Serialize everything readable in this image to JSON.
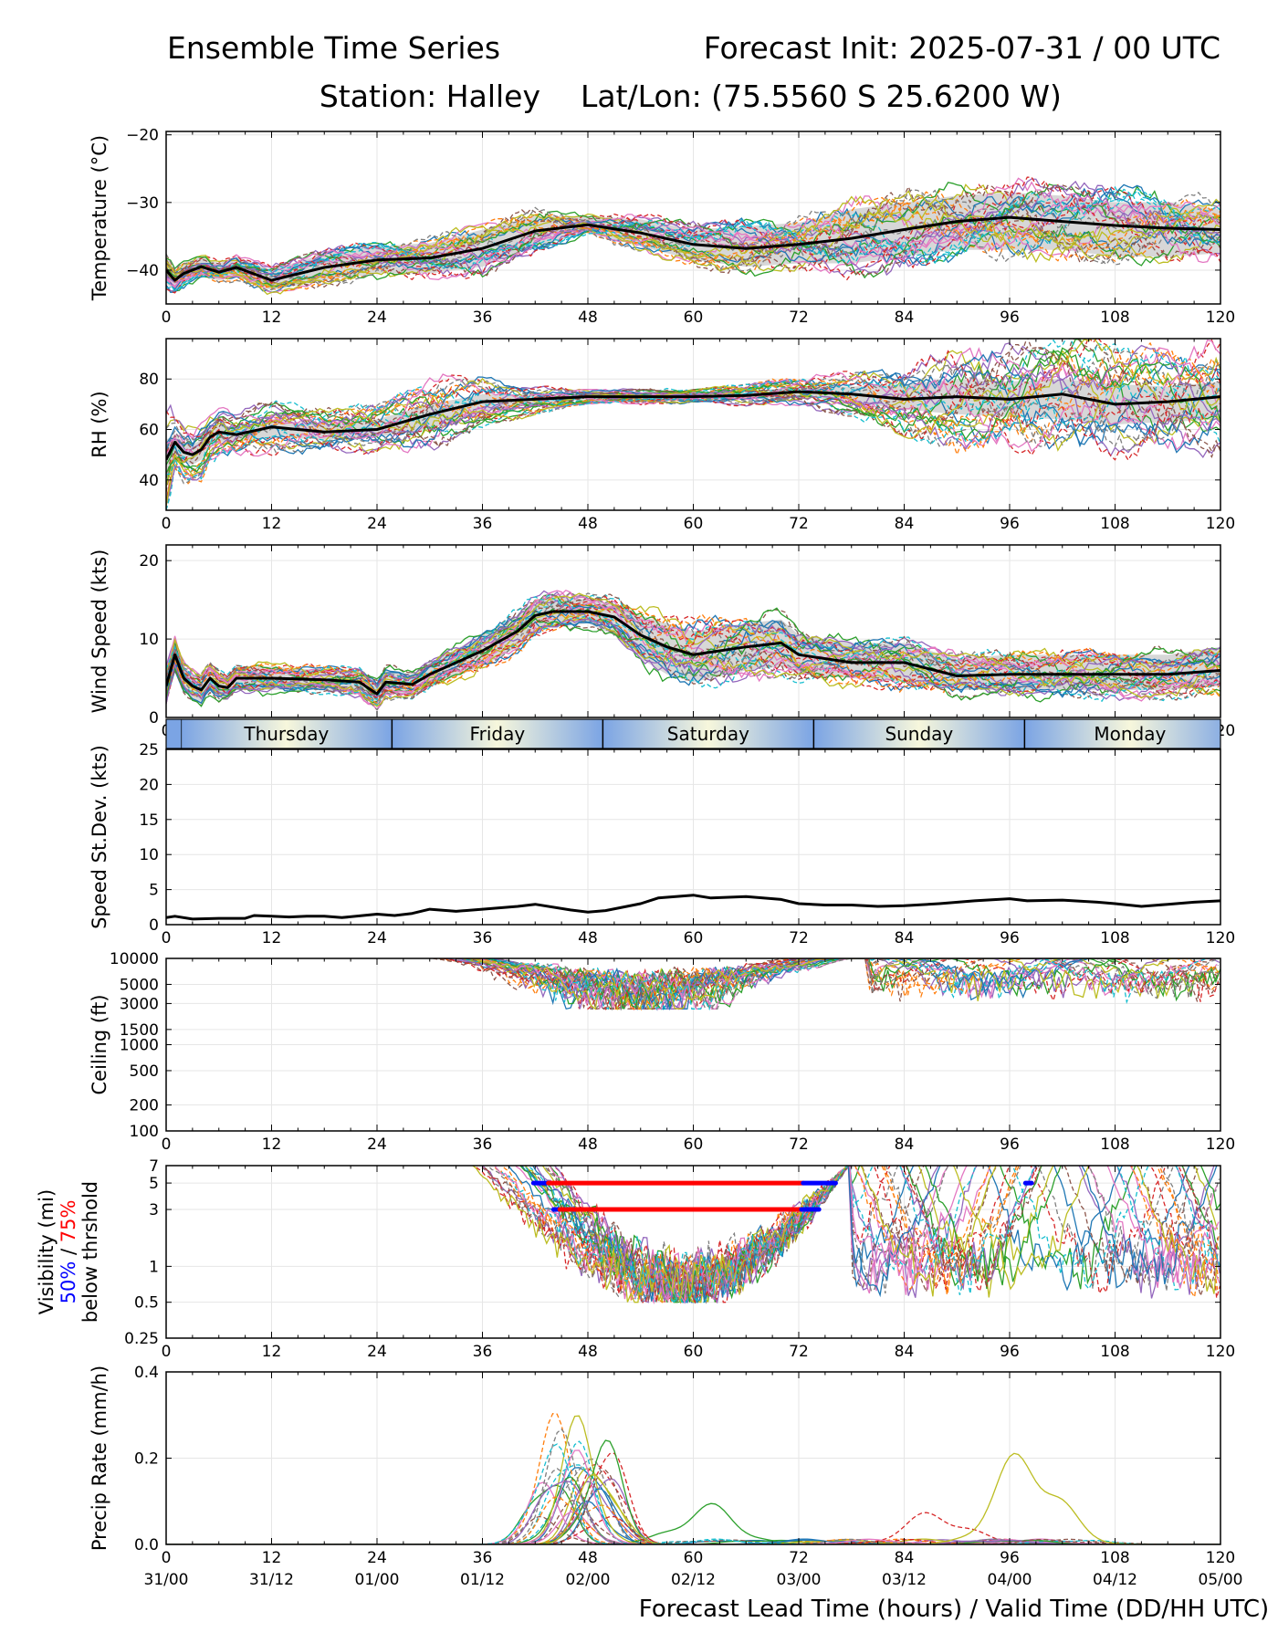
{
  "header": {
    "title": "Ensemble Time Series",
    "init": "Forecast Init: 2025-07-31 / 00 UTC",
    "station": "Station: Halley",
    "latlon": "Lat/Lon: (75.5560 S 25.6200 W)"
  },
  "xaxis": {
    "range": [
      0,
      120
    ],
    "ticks": [
      0,
      12,
      24,
      36,
      48,
      60,
      72,
      84,
      96,
      108,
      120
    ],
    "tick_labels": [
      "0",
      "12",
      "24",
      "36",
      "48",
      "60",
      "72",
      "84",
      "96",
      "108",
      "120"
    ],
    "valid_labels": [
      "31/00",
      "31/12",
      "01/00",
      "01/12",
      "02/00",
      "02/12",
      "03/00",
      "03/12",
      "04/00",
      "04/12",
      "05/00"
    ],
    "label": "Forecast Lead Time (hours) / Valid Time (DD/HH UTC)"
  },
  "colors": {
    "mean": "#000000",
    "spread": "#d3d3d3",
    "members": [
      "#1f77b4",
      "#ff7f0e",
      "#2ca02c",
      "#d62728",
      "#9467bd",
      "#8c564b",
      "#e377c2",
      "#7f7f7f",
      "#bcbd22",
      "#17becf"
    ],
    "vis_50": "#0000ff",
    "vis_75": "#ff0000",
    "day_band_edge": "#7ba4e4",
    "day_band_center": "#f7f7dc"
  },
  "day_band": {
    "days": [
      {
        "label": "Thursday",
        "start": 1.7,
        "end": 25.7
      },
      {
        "label": "Friday",
        "start": 25.7,
        "end": 49.7
      },
      {
        "label": "Saturday",
        "start": 49.7,
        "end": 73.7
      },
      {
        "label": "Sunday",
        "start": 73.7,
        "end": 97.7
      },
      {
        "label": "Monday",
        "start": 97.7,
        "end": 121.7
      }
    ]
  },
  "chart_data": [
    {
      "type": "line",
      "ylabel": "Temperature (°C)",
      "ylim": [
        -45,
        -19.5
      ],
      "yticks": [
        -40,
        -30,
        -20
      ],
      "ytick_labels": [
        "−40",
        "−30",
        "−20"
      ],
      "grid": true,
      "mean": {
        "x": [
          0,
          1,
          2,
          4,
          6,
          8,
          12,
          18,
          24,
          30,
          36,
          42,
          48,
          54,
          60,
          66,
          72,
          78,
          84,
          90,
          96,
          102,
          108,
          114,
          120
        ],
        "y": [
          -40,
          -41.5,
          -40.5,
          -39.5,
          -40.3,
          -39.6,
          -41.5,
          -39.6,
          -38.5,
          -38.2,
          -36.8,
          -34.2,
          -33.3,
          -34.5,
          -36.2,
          -36.8,
          -36.2,
          -35.3,
          -34.0,
          -32.8,
          -32.2,
          -32.8,
          -33.4,
          -33.8,
          -34.0
        ]
      },
      "spread_low": [
        -42,
        -43,
        -42,
        -41,
        -41.5,
        -41,
        -43,
        -41.5,
        -40.5,
        -40.5,
        -39.5,
        -36.5,
        -34.5,
        -36.5,
        -38.5,
        -39.5,
        -39,
        -39,
        -38,
        -37,
        -37,
        -37,
        -38,
        -38,
        -37.5
      ],
      "spread_high": [
        -38,
        -40,
        -39,
        -38,
        -39,
        -38,
        -40,
        -37.5,
        -36.5,
        -36,
        -34,
        -32,
        -32,
        -32.5,
        -34,
        -33.5,
        -33,
        -31,
        -30,
        -29,
        -28.5,
        -29,
        -30,
        -30,
        -31
      ],
      "member_count": 30
    },
    {
      "type": "line",
      "ylabel": "RH (%)",
      "ylim": [
        28,
        96
      ],
      "yticks": [
        40,
        60,
        80
      ],
      "ytick_labels": [
        "40",
        "60",
        "80"
      ],
      "grid": true,
      "mean": {
        "x": [
          0,
          1,
          2,
          3,
          4,
          5,
          6,
          8,
          12,
          18,
          24,
          30,
          36,
          42,
          48,
          54,
          60,
          66,
          72,
          78,
          84,
          90,
          96,
          102,
          108,
          114,
          120
        ],
        "y": [
          48,
          55,
          51,
          50,
          52,
          57,
          59,
          58,
          61,
          59,
          60,
          66,
          71,
          72,
          73,
          73,
          73,
          73.5,
          75,
          74,
          72,
          73,
          72,
          74,
          70,
          71,
          73
        ]
      },
      "spread_low": [
        40,
        50,
        47,
        46,
        48,
        53,
        55,
        55,
        57,
        56,
        57,
        60,
        67,
        70,
        72,
        72,
        72,
        72,
        73,
        71,
        68,
        66,
        65,
        64,
        62,
        63,
        64
      ],
      "spread_high": [
        56,
        58,
        55,
        54,
        56,
        60,
        62,
        61,
        64,
        62,
        64,
        70,
        74,
        74,
        74,
        74,
        74,
        75,
        77,
        77,
        78,
        80,
        79,
        80,
        78,
        77,
        79
      ],
      "member_count": 30
    },
    {
      "type": "line",
      "ylabel": "Wind Speed (kts)",
      "ylim": [
        0,
        22
      ],
      "yticks": [
        0,
        10,
        20
      ],
      "ytick_labels": [
        "0",
        "10",
        "20"
      ],
      "grid": true,
      "mean": {
        "x": [
          0,
          1,
          2,
          3,
          4,
          5,
          6,
          7,
          8,
          12,
          18,
          22,
          24,
          25,
          28,
          30,
          36,
          40,
          42,
          44,
          48,
          51,
          54,
          57,
          60,
          66,
          70,
          72,
          78,
          84,
          90,
          96,
          102,
          108,
          114,
          120
        ],
        "y": [
          4,
          8,
          5,
          4,
          3.5,
          5,
          4,
          3.8,
          5,
          5,
          4.8,
          4.5,
          3,
          4.5,
          4.2,
          5.5,
          8.5,
          11,
          13,
          13.5,
          13.5,
          12.8,
          10.5,
          9,
          8,
          9,
          9.5,
          8,
          7,
          7,
          5.3,
          5.5,
          5.5,
          5.5,
          5.5,
          6
        ]
      },
      "spread_low": [
        2,
        6,
        3.5,
        2.5,
        2,
        3.5,
        2.5,
        2.5,
        3.5,
        3.5,
        3.5,
        3,
        1.5,
        3,
        3,
        4,
        6.5,
        9,
        11,
        11.5,
        12,
        10.5,
        7.5,
        5.5,
        4.5,
        6,
        6.5,
        5.5,
        5,
        4.5,
        3.5,
        3.5,
        3.5,
        3.5,
        3.5,
        4
      ],
      "spread_high": [
        6,
        9.5,
        6.5,
        5.5,
        5,
        6.5,
        5.5,
        5,
        6.5,
        6.5,
        6,
        6,
        4.5,
        6,
        5.5,
        7,
        10.5,
        13,
        15,
        15.5,
        15,
        14.5,
        13,
        12,
        11,
        12,
        12.5,
        10.5,
        9.5,
        9.5,
        7.5,
        8,
        8,
        8,
        8,
        9
      ],
      "member_count": 30
    },
    {
      "type": "line",
      "ylabel": "Speed St.Dev. (kts)",
      "ylim": [
        0,
        25
      ],
      "yticks": [
        0,
        5,
        10,
        15,
        20,
        25
      ],
      "ytick_labels": [
        "0",
        "5",
        "10",
        "15",
        "20",
        "25"
      ],
      "grid": true,
      "mean": {
        "x": [
          0,
          1,
          3,
          6,
          9,
          10,
          12,
          14,
          16,
          18,
          20,
          24,
          26,
          28,
          30,
          33,
          36,
          40,
          42,
          46,
          48,
          50,
          54,
          56,
          60,
          62,
          66,
          70,
          72,
          75,
          78,
          81,
          84,
          88,
          92,
          96,
          98,
          102,
          106,
          108,
          111,
          114,
          117,
          120
        ],
        "y": [
          1,
          1.2,
          0.8,
          0.9,
          0.9,
          1.3,
          1.2,
          1.1,
          1.2,
          1.2,
          1.0,
          1.5,
          1.3,
          1.6,
          2.2,
          1.9,
          2.2,
          2.6,
          2.9,
          2.1,
          1.8,
          2.0,
          3.0,
          3.8,
          4.2,
          3.8,
          4.0,
          3.6,
          3.0,
          2.8,
          2.8,
          2.6,
          2.7,
          3.0,
          3.4,
          3.7,
          3.4,
          3.5,
          3.2,
          3.0,
          2.6,
          2.9,
          3.2,
          3.4
        ]
      }
    },
    {
      "type": "line",
      "ylabel": "Ceiling (ft)",
      "ylim": [
        100,
        10000
      ],
      "yscale": "log",
      "yticks": [
        100,
        200,
        500,
        1000,
        1500,
        3000,
        5000,
        10000
      ],
      "ytick_labels": [
        "100",
        "200",
        "500",
        "1000",
        "1500",
        "3000",
        "5000",
        "10000"
      ],
      "grid": true,
      "member_count": 30
    },
    {
      "type": "line",
      "ylabel": "Visibility (mi)",
      "ylabel_50": "50%",
      "ylabel_sep": " / ",
      "ylabel_75": "75%",
      "ylabel_line2": "below thrshold",
      "ylim": [
        0.25,
        7
      ],
      "yscale": "log",
      "yticks": [
        0.25,
        0.5,
        1,
        3,
        5,
        7
      ],
      "ytick_labels": [
        "0.25",
        "0.5",
        "1",
        "3",
        "5",
        "7"
      ],
      "grid": true,
      "threshold_bars": [
        {
          "percentile": "50%",
          "y": 5,
          "x_start": 41.8,
          "x_end": 43.5,
          "color": "#0000ff"
        },
        {
          "percentile": "75%",
          "y": 5,
          "x_start": 43.5,
          "x_end": 72.5,
          "color": "#ff0000"
        },
        {
          "percentile": "50%",
          "y": 5,
          "x_start": 72.5,
          "x_end": 76.2,
          "color": "#0000ff"
        },
        {
          "percentile": "50%",
          "y": 3,
          "x_start": 44.1,
          "x_end": 44.8,
          "color": "#0000ff"
        },
        {
          "percentile": "75%",
          "y": 3,
          "x_start": 44.8,
          "x_end": 72.3,
          "color": "#ff0000"
        },
        {
          "percentile": "50%",
          "y": 3,
          "x_start": 72.3,
          "x_end": 74.3,
          "color": "#0000ff"
        },
        {
          "percentile": "50%",
          "y": 5,
          "x_start": 97.8,
          "x_end": 98.5,
          "color": "#0000ff"
        }
      ],
      "member_count": 30
    },
    {
      "type": "line",
      "ylabel": "Precip Rate (mm/h)",
      "ylim": [
        0,
        0.4
      ],
      "yticks": [
        0,
        0.2,
        0.4
      ],
      "ytick_labels": [
        "0.0",
        "0.2",
        "0.4"
      ],
      "grid": true,
      "member_count": 30
    }
  ]
}
